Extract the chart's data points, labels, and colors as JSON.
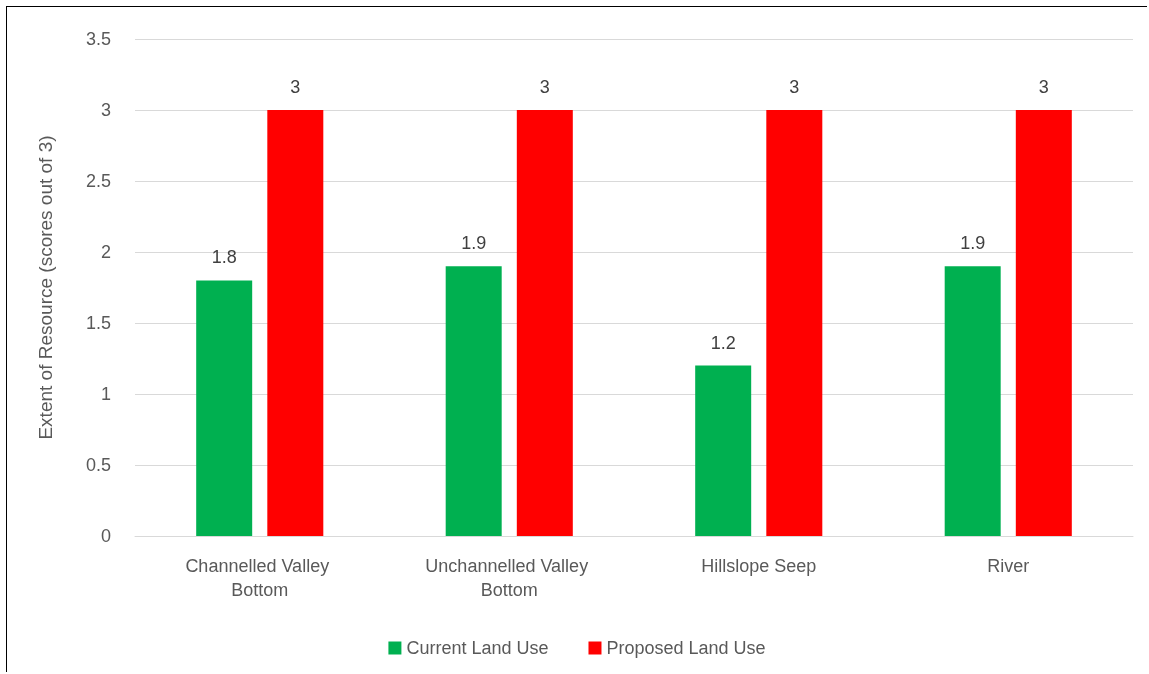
{
  "chart_data": {
    "type": "bar",
    "ylabel": "Extent of Resource (scores out of 3)",
    "categories": [
      "Channelled Valley Bottom",
      "Unchannelled Valley Bottom",
      "Hillslope Seep",
      "River"
    ],
    "series": [
      {
        "name": "Current Land Use",
        "color": "#00b050",
        "values": [
          1.8,
          1.9,
          1.2,
          1.9
        ]
      },
      {
        "name": "Proposed Land Use",
        "color": "#ff0000",
        "values": [
          3,
          3,
          3,
          3
        ]
      }
    ],
    "ylim": [
      0,
      3.5
    ],
    "yticks": [
      0,
      0.5,
      1,
      1.5,
      2,
      2.5,
      3,
      3.5
    ],
    "grid": "y",
    "legend": "bottom",
    "data_labels": true
  }
}
